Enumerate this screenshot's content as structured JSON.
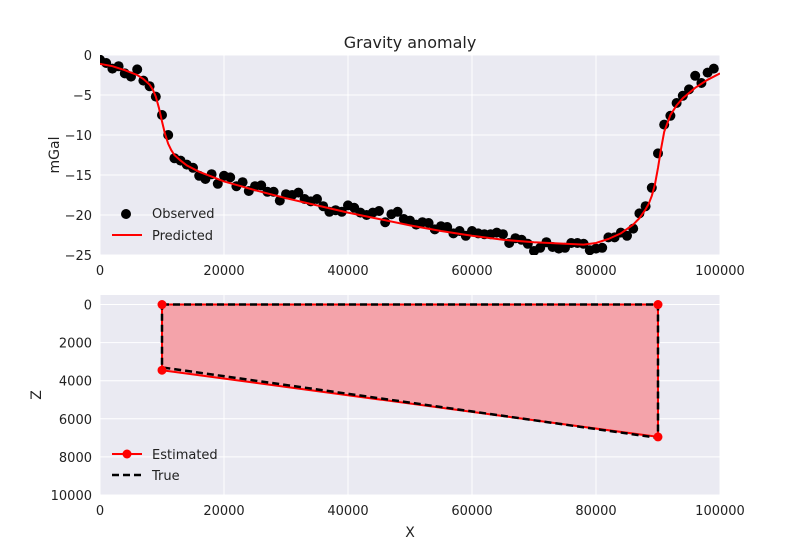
{
  "chart_data": [
    {
      "type": "scatter",
      "title": "Gravity anomaly",
      "xlabel": "",
      "ylabel": "mGal",
      "xlim": [
        0,
        100000
      ],
      "ylim": [
        -25,
        0
      ],
      "xticks": [
        0,
        20000,
        40000,
        60000,
        80000,
        100000
      ],
      "yticks": [
        0,
        -5,
        -10,
        -15,
        -20,
        -25
      ],
      "grid": true,
      "legend_position": "lower-left",
      "series": [
        {
          "name": "Observed",
          "type": "scatter",
          "color": "#000000",
          "x": [
            0,
            1000,
            2000,
            3000,
            4000,
            5000,
            6000,
            7000,
            8000,
            9000,
            10000,
            11000,
            12000,
            13000,
            14000,
            15000,
            16000,
            17000,
            18000,
            19000,
            20000,
            21000,
            22000,
            23000,
            24000,
            25000,
            26000,
            27000,
            28000,
            29000,
            30000,
            31000,
            32000,
            33000,
            34000,
            35000,
            36000,
            37000,
            38000,
            39000,
            40000,
            41000,
            42000,
            43000,
            44000,
            45000,
            46000,
            47000,
            48000,
            49000,
            50000,
            51000,
            52000,
            53000,
            54000,
            55000,
            56000,
            57000,
            58000,
            59000,
            60000,
            61000,
            62000,
            63000,
            64000,
            65000,
            66000,
            67000,
            68000,
            69000,
            70000,
            71000,
            72000,
            73000,
            74000,
            75000,
            76000,
            77000,
            78000,
            79000,
            80000,
            81000,
            82000,
            83000,
            84000,
            85000,
            86000,
            87000,
            88000,
            89000,
            90000,
            91000,
            92000,
            93000,
            94000,
            95000,
            96000,
            97000,
            98000,
            99000
          ],
          "y": [
            -0.6,
            -1.0,
            -1.7,
            -1.4,
            -2.3,
            -2.7,
            -1.8,
            -3.2,
            -3.9,
            -5.2,
            -7.5,
            -10.0,
            -12.9,
            -13.2,
            -13.7,
            -14.1,
            -15.1,
            -15.5,
            -14.9,
            -16.1,
            -15.1,
            -15.3,
            -16.4,
            -15.9,
            -17.0,
            -16.4,
            -16.3,
            -17.1,
            -17.1,
            -18.2,
            -17.4,
            -17.5,
            -17.2,
            -18.0,
            -18.3,
            -18.0,
            -18.9,
            -19.6,
            -19.4,
            -19.6,
            -18.8,
            -19.1,
            -19.7,
            -20.0,
            -19.7,
            -19.5,
            -20.9,
            -19.9,
            -19.6,
            -20.5,
            -20.7,
            -21.2,
            -20.9,
            -21.0,
            -21.8,
            -21.4,
            -21.5,
            -22.3,
            -22.0,
            -22.6,
            -22.0,
            -22.3,
            -22.4,
            -22.4,
            -22.2,
            -22.4,
            -23.5,
            -22.9,
            -23.1,
            -23.6,
            -24.5,
            -24.1,
            -23.4,
            -24.0,
            -24.2,
            -24.1,
            -23.5,
            -23.5,
            -23.6,
            -24.4,
            -24.2,
            -24.1,
            -22.8,
            -22.8,
            -22.2,
            -22.6,
            -21.7,
            -19.8,
            -18.9,
            -16.6,
            -12.3,
            -8.7,
            -7.6,
            -6.0,
            -5.1,
            -4.3,
            -2.6,
            -3.5,
            -2.2,
            -1.7
          ]
        },
        {
          "name": "Predicted",
          "type": "line",
          "color": "#ff0000",
          "x": [
            0,
            2000,
            4000,
            6000,
            7000,
            8000,
            8500,
            9000,
            9500,
            10000,
            10500,
            11000,
            11500,
            12000,
            13000,
            14000,
            16000,
            18000,
            20000,
            25000,
            30000,
            35000,
            40000,
            45000,
            50000,
            55000,
            60000,
            65000,
            70000,
            75000,
            78000,
            80000,
            82000,
            84000,
            86000,
            87000,
            88000,
            88500,
            89000,
            89500,
            90000,
            90500,
            91000,
            92000,
            93000,
            94000,
            96000,
            98000,
            100000
          ],
          "y": [
            -1.1,
            -1.4,
            -1.9,
            -2.5,
            -3.0,
            -3.7,
            -4.3,
            -5.2,
            -6.6,
            -8.3,
            -9.9,
            -11.1,
            -11.9,
            -12.5,
            -13.2,
            -13.8,
            -14.6,
            -15.2,
            -15.8,
            -16.9,
            -17.9,
            -18.8,
            -19.7,
            -20.5,
            -21.3,
            -22.0,
            -22.6,
            -23.1,
            -23.4,
            -23.6,
            -23.7,
            -23.5,
            -23.0,
            -22.3,
            -21.2,
            -20.4,
            -19.3,
            -18.6,
            -17.6,
            -16.2,
            -14.1,
            -11.7,
            -9.6,
            -7.5,
            -6.3,
            -5.4,
            -4.1,
            -3.1,
            -2.3
          ]
        }
      ]
    },
    {
      "type": "area",
      "title": "",
      "xlabel": "X",
      "ylabel": "Z",
      "xlim": [
        0,
        100000
      ],
      "ylim": [
        10000,
        -500
      ],
      "xticks": [
        0,
        20000,
        40000,
        60000,
        80000,
        100000
      ],
      "yticks": [
        0,
        2000,
        4000,
        6000,
        8000,
        10000
      ],
      "y_inverted": true,
      "grid": true,
      "legend_position": "lower-left",
      "series": [
        {
          "name": "Estimated",
          "type": "polygon",
          "color": "#ff0000",
          "fill": "#f4a3aa",
          "x": [
            10000,
            90000,
            90000,
            10000
          ],
          "y": [
            0,
            0,
            6950,
            3450
          ]
        },
        {
          "name": "True",
          "type": "polygon-dashed",
          "color": "#000000",
          "x": [
            10000,
            90000,
            90000,
            10000
          ],
          "y": [
            0,
            0,
            7000,
            3300
          ]
        }
      ]
    }
  ]
}
